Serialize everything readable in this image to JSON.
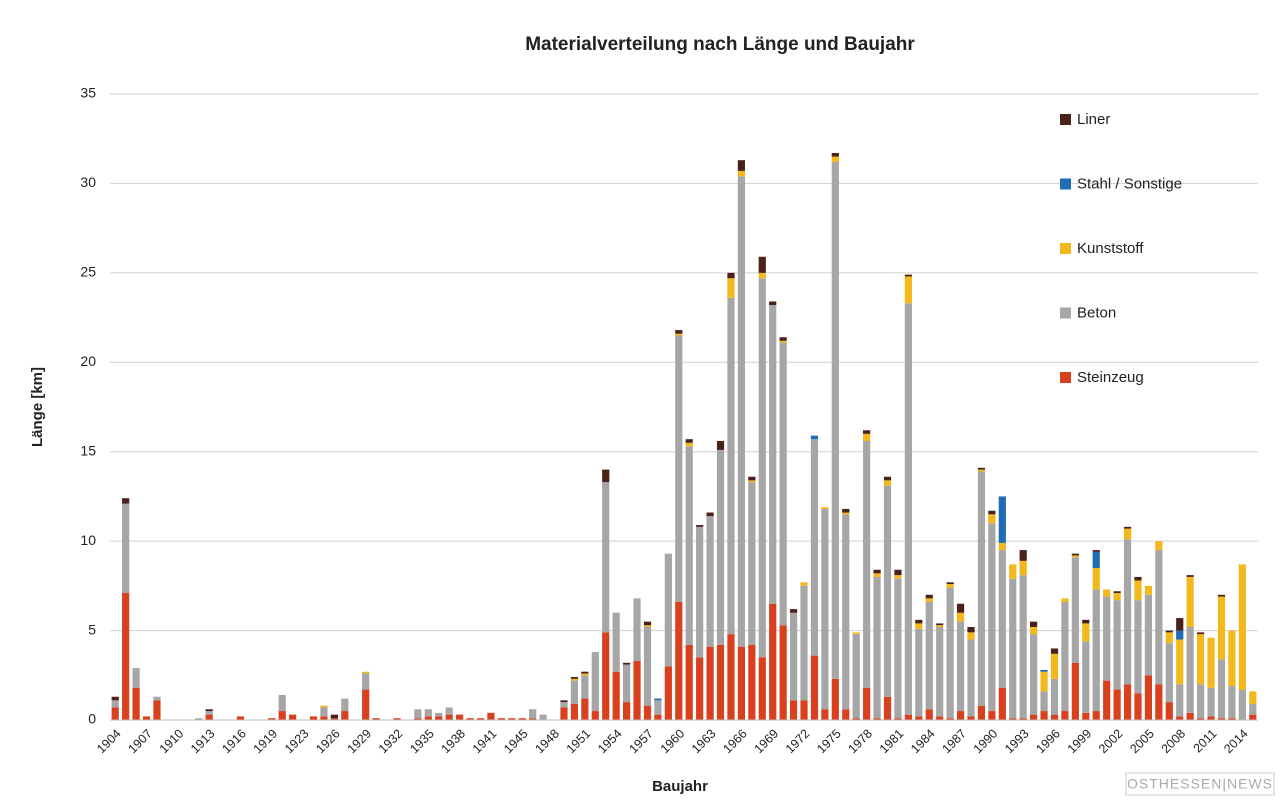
{
  "chart_data": {
    "type": "stacked_bar",
    "title": "Materialverteilung nach Länge und Baujahr",
    "x_label": "Baujahr",
    "y_label": "Länge [km]",
    "watermark": "OSTHESSEN|NEWS",
    "categories": [
      "1904",
      null,
      null,
      "1907",
      null,
      null,
      "1910",
      null,
      null,
      "1913",
      null,
      null,
      "1916",
      null,
      null,
      "1919",
      null,
      null,
      "1923",
      null,
      null,
      "1926",
      null,
      null,
      "1929",
      null,
      null,
      "1932",
      null,
      null,
      "1935",
      null,
      null,
      "1938",
      null,
      null,
      "1941",
      null,
      null,
      "1945",
      null,
      null,
      "1948",
      null,
      null,
      "1951",
      null,
      null,
      "1954",
      null,
      null,
      "1957",
      null,
      null,
      "1960",
      null,
      null,
      "1963",
      null,
      null,
      "1966",
      null,
      null,
      "1969",
      null,
      null,
      "1972",
      null,
      null,
      "1975",
      null,
      null,
      "1978",
      null,
      null,
      "1981",
      null,
      null,
      "1984",
      null,
      null,
      "1987",
      null,
      null,
      "1990",
      null,
      null,
      "1993",
      null,
      null,
      "1996",
      null,
      null,
      "1999",
      null,
      null,
      "2002",
      null,
      null,
      "2005",
      null,
      null,
      "2008",
      null,
      null,
      "2011",
      null,
      null,
      "2014",
      null
    ],
    "series": [
      {
        "name": "Steinzeug",
        "color": "#d9401e",
        "values": [
          0.7,
          7.1,
          1.8,
          0.2,
          1.1,
          0,
          0,
          0,
          0,
          0.3,
          0,
          0,
          0.2,
          0,
          0,
          0.1,
          0.5,
          0.3,
          0,
          0.2,
          0.2,
          0.1,
          0.5,
          0,
          1.7,
          0.1,
          0,
          0.1,
          0,
          0.1,
          0.2,
          0.2,
          0.3,
          0.3,
          0.1,
          0.1,
          0.4,
          0.1,
          0.1,
          0.1,
          0.1,
          0,
          0,
          0.7,
          0.9,
          1.2,
          0.5,
          4.9,
          2.7,
          1.0,
          3.3,
          0.8,
          0.3,
          3.0,
          6.6,
          4.2,
          3.5,
          4.1,
          4.2,
          4.8,
          4.1,
          4.2,
          3.5,
          6.5,
          5.3,
          1.1,
          1.1,
          3.6,
          0.6,
          2.3,
          0.6,
          0.1,
          1.8,
          0.1,
          1.3,
          0.1,
          0.3,
          0.2,
          0.6,
          0.2,
          0.1,
          0.5,
          0.2,
          0.8,
          0.5,
          1.8,
          0.1,
          0.1,
          0.3,
          0.5,
          0.3,
          0.5,
          3.2,
          0.4,
          0.5,
          2.2,
          1.7,
          2.0,
          1.5,
          2.5,
          2.0,
          1.0,
          0.2,
          0.4,
          0.1,
          0.2,
          0.1,
          0.1,
          0,
          0.3
        ]
      },
      {
        "name": "Beton",
        "color": "#a6a6a6",
        "values": [
          0.4,
          5.0,
          1.1,
          0,
          0.2,
          0,
          0,
          0,
          0.1,
          0.2,
          0,
          0,
          0,
          0,
          0,
          0,
          0.9,
          0,
          0,
          0,
          0.5,
          0,
          0.7,
          0,
          0.9,
          0,
          0,
          0,
          0,
          0.5,
          0.4,
          0.2,
          0.4,
          0,
          0,
          0,
          0,
          0,
          0,
          0,
          0.5,
          0.3,
          0,
          0.3,
          1.3,
          1.3,
          3.3,
          8.4,
          3.3,
          2.1,
          3.5,
          4.4,
          0.8,
          6.3,
          14.9,
          11.1,
          7.3,
          7.3,
          10.9,
          18.8,
          26.3,
          9.1,
          21.2,
          16.7,
          15.8,
          4.9,
          6.4,
          12.1,
          11.2,
          28.9,
          10.9,
          4.7,
          13.8,
          7.9,
          11.8,
          7.8,
          23.0,
          4.9,
          6.0,
          5.0,
          7.3,
          5.0,
          4.3,
          13.1,
          10.5,
          7.7,
          7.8,
          8.0,
          4.5,
          1.1,
          2.0,
          6.1,
          5.9,
          4.0,
          6.8,
          4.7,
          5.0,
          8.1,
          5.2,
          4.5,
          7.5,
          3.3,
          1.8,
          4.8,
          1.9,
          1.6,
          3.3,
          1.8,
          1.7,
          0.6
        ]
      },
      {
        "name": "Kunststoff",
        "color": "#f5b81c",
        "values": [
          0,
          0,
          0,
          0,
          0,
          0,
          0,
          0,
          0,
          0,
          0,
          0,
          0,
          0,
          0,
          0,
          0,
          0,
          0,
          0,
          0.1,
          0,
          0,
          0,
          0.1,
          0,
          0,
          0,
          0,
          0,
          0,
          0,
          0,
          0,
          0,
          0,
          0,
          0,
          0,
          0,
          0,
          0,
          0,
          0,
          0.1,
          0.1,
          0,
          0,
          0,
          0,
          0,
          0.1,
          0,
          0,
          0.1,
          0.2,
          0,
          0,
          0,
          1.1,
          0.3,
          0.1,
          0.3,
          0,
          0.1,
          0,
          0.2,
          0,
          0.1,
          0.3,
          0.1,
          0.1,
          0.4,
          0.2,
          0.3,
          0.2,
          1.5,
          0.3,
          0.2,
          0.1,
          0.2,
          0.5,
          0.4,
          0.1,
          0.5,
          0.4,
          0.8,
          0.8,
          0.4,
          1.1,
          1.4,
          0.2,
          0.1,
          1.0,
          1.2,
          0.4,
          0.4,
          0.6,
          1.1,
          0.5,
          0.5,
          0.6,
          2.5,
          2.8,
          2.8,
          2.8,
          3.5,
          3.1,
          7.0,
          0.7
        ]
      },
      {
        "name": "Stahl / Sonstige",
        "color": "#1f6db3",
        "values": [
          0,
          0,
          0,
          0,
          0,
          0,
          0,
          0,
          0,
          0,
          0,
          0,
          0,
          0,
          0,
          0,
          0,
          0,
          0,
          0,
          0,
          0,
          0,
          0,
          0,
          0,
          0,
          0,
          0,
          0,
          0,
          0,
          0,
          0,
          0,
          0,
          0,
          0,
          0,
          0,
          0,
          0,
          0,
          0,
          0,
          0,
          0,
          0,
          0,
          0,
          0,
          0,
          0.1,
          0,
          0,
          0,
          0,
          0,
          0,
          0,
          0,
          0,
          0,
          0,
          0,
          0,
          0,
          0.2,
          0,
          0,
          0,
          0,
          0,
          0,
          0,
          0,
          0,
          0,
          0,
          0,
          0,
          0,
          0,
          0,
          0,
          2.6,
          0,
          0,
          0,
          0.1,
          0,
          0,
          0,
          0,
          0.9,
          0,
          0,
          0,
          0,
          0,
          0,
          0,
          0.5,
          0,
          0,
          0,
          0,
          0,
          0,
          0
        ]
      },
      {
        "name": "Liner",
        "color": "#4b2219",
        "values": [
          0.2,
          0.3,
          0,
          0,
          0,
          0,
          0,
          0,
          0,
          0.1,
          0,
          0,
          0,
          0,
          0,
          0,
          0,
          0,
          0,
          0,
          0,
          0.2,
          0,
          0,
          0,
          0,
          0,
          0,
          0,
          0,
          0,
          0,
          0,
          0,
          0,
          0,
          0,
          0,
          0,
          0,
          0,
          0,
          0,
          0.1,
          0.1,
          0.1,
          0,
          0.7,
          0,
          0.1,
          0,
          0.2,
          0,
          0,
          0.2,
          0.2,
          0.1,
          0.2,
          0.5,
          0.3,
          0.6,
          0.2,
          0.9,
          0.2,
          0.2,
          0.2,
          0,
          0,
          0,
          0.2,
          0.2,
          0,
          0.2,
          0.2,
          0.2,
          0.3,
          0.1,
          0.2,
          0.2,
          0.1,
          0.1,
          0.5,
          0.3,
          0.1,
          0.2,
          0,
          0,
          0.6,
          0.3,
          0,
          0.3,
          0,
          0.1,
          0.2,
          0.1,
          0,
          0.1,
          0.1,
          0.2,
          0,
          0,
          0.1,
          0.7,
          0.1,
          0.1,
          0,
          0.1,
          0,
          0,
          0
        ]
      }
    ],
    "ylim": [
      0,
      35
    ],
    "yticks": [
      0,
      5,
      10,
      15,
      20,
      25,
      30,
      35
    ],
    "grid": true,
    "legend": "right"
  }
}
